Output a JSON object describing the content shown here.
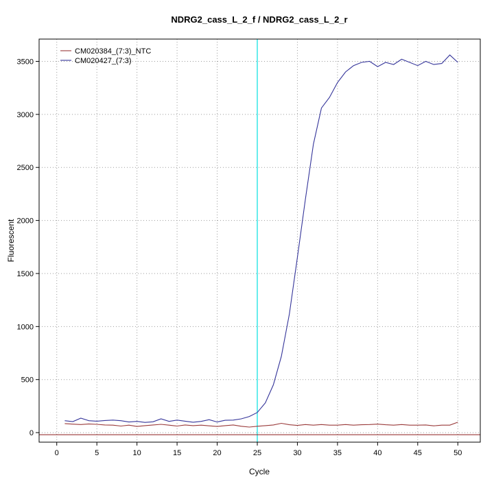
{
  "chart_data": {
    "type": "line",
    "title": "NDRG2_cass_L_2_f / NDRG2_cass_L_2_r",
    "xlabel": "Cycle",
    "ylabel": "Fluorescent",
    "xlim": [
      -2.2,
      52.8
    ],
    "ylim": [
      -90,
      3710
    ],
    "xticks": [
      0,
      5,
      10,
      15,
      20,
      25,
      30,
      35,
      40,
      45,
      50
    ],
    "yticks": [
      0,
      500,
      1000,
      1500,
      2000,
      2500,
      3000,
      3500
    ],
    "grid": "dotted",
    "grid_color": "#9a9a9a",
    "legend_position": "top-left",
    "vline": {
      "x": 25,
      "color": "#00e0e0"
    },
    "threshold_line": {
      "y": -20,
      "color": "#8b1a1a"
    },
    "cycles": [
      1,
      2,
      3,
      4,
      5,
      6,
      7,
      8,
      9,
      10,
      11,
      12,
      13,
      14,
      15,
      16,
      17,
      18,
      19,
      20,
      21,
      22,
      23,
      24,
      25,
      26,
      27,
      28,
      29,
      30,
      31,
      32,
      33,
      34,
      35,
      36,
      37,
      38,
      39,
      40,
      41,
      42,
      43,
      44,
      45,
      46,
      47,
      48,
      49,
      50
    ],
    "series": [
      {
        "name": "CM020384_(7:3)_NTC",
        "color": "#993939",
        "values": [
          85,
          80,
          76,
          82,
          78,
          72,
          70,
          62,
          70,
          58,
          66,
          72,
          78,
          70,
          62,
          72,
          66,
          70,
          64,
          58,
          66,
          72,
          60,
          52,
          60,
          66,
          72,
          88,
          74,
          68,
          76,
          70,
          76,
          70,
          70,
          76,
          70,
          74,
          76,
          80,
          74,
          70,
          76,
          70,
          70,
          72,
          64,
          70,
          70,
          98
        ]
      },
      {
        "name": "CM020427_(7:3)",
        "color": "#333399",
        "values": [
          112,
          104,
          136,
          112,
          108,
          114,
          118,
          112,
          100,
          106,
          96,
          102,
          130,
          106,
          118,
          108,
          98,
          106,
          122,
          100,
          116,
          118,
          130,
          152,
          190,
          280,
          450,
          720,
          1120,
          1650,
          2200,
          2720,
          3060,
          3160,
          3300,
          3400,
          3460,
          3490,
          3500,
          3450,
          3490,
          3470,
          3520,
          3490,
          3460,
          3500,
          3470,
          3480,
          3560,
          3490
        ]
      }
    ]
  }
}
